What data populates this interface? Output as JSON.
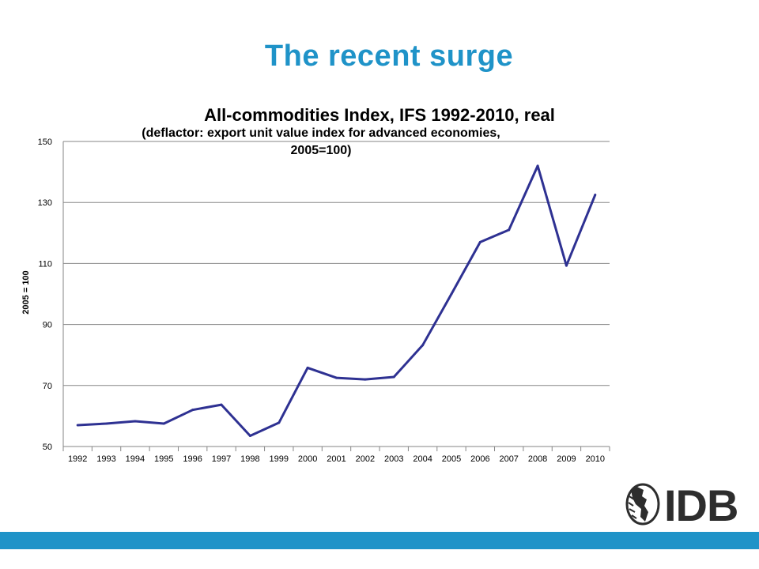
{
  "slide": {
    "title": "The recent surge"
  },
  "chart_data": {
    "type": "line",
    "title": "All-commodities Index, IFS 1992-2010, real",
    "subtitle_line1": "(deflactor: export unit value index for advanced economies,",
    "subtitle_line2": "2005=100)",
    "ylabel": "2005 = 100",
    "xlabel": "",
    "categories": [
      "1992",
      "1993",
      "1994",
      "1995",
      "1996",
      "1997",
      "1998",
      "1999",
      "2000",
      "2001",
      "2002",
      "2003",
      "2004",
      "2005",
      "2006",
      "2007",
      "2008",
      "2009",
      "2010"
    ],
    "values": [
      57,
      57.5,
      58.3,
      57.5,
      62,
      63.7,
      53.5,
      57.8,
      75.8,
      72.5,
      72,
      72.8,
      83.2,
      100,
      117,
      121,
      142,
      109.3,
      132.5
    ],
    "ylim": [
      50,
      150
    ],
    "yticks": [
      50,
      70,
      90,
      110,
      130,
      150
    ],
    "grid": true,
    "line_color": "#2e3192",
    "legend": "none"
  },
  "logo": {
    "text": "IDB",
    "icon": "globe-americas-icon"
  },
  "colors": {
    "accent": "#1f93c8",
    "series": "#2e3192"
  }
}
